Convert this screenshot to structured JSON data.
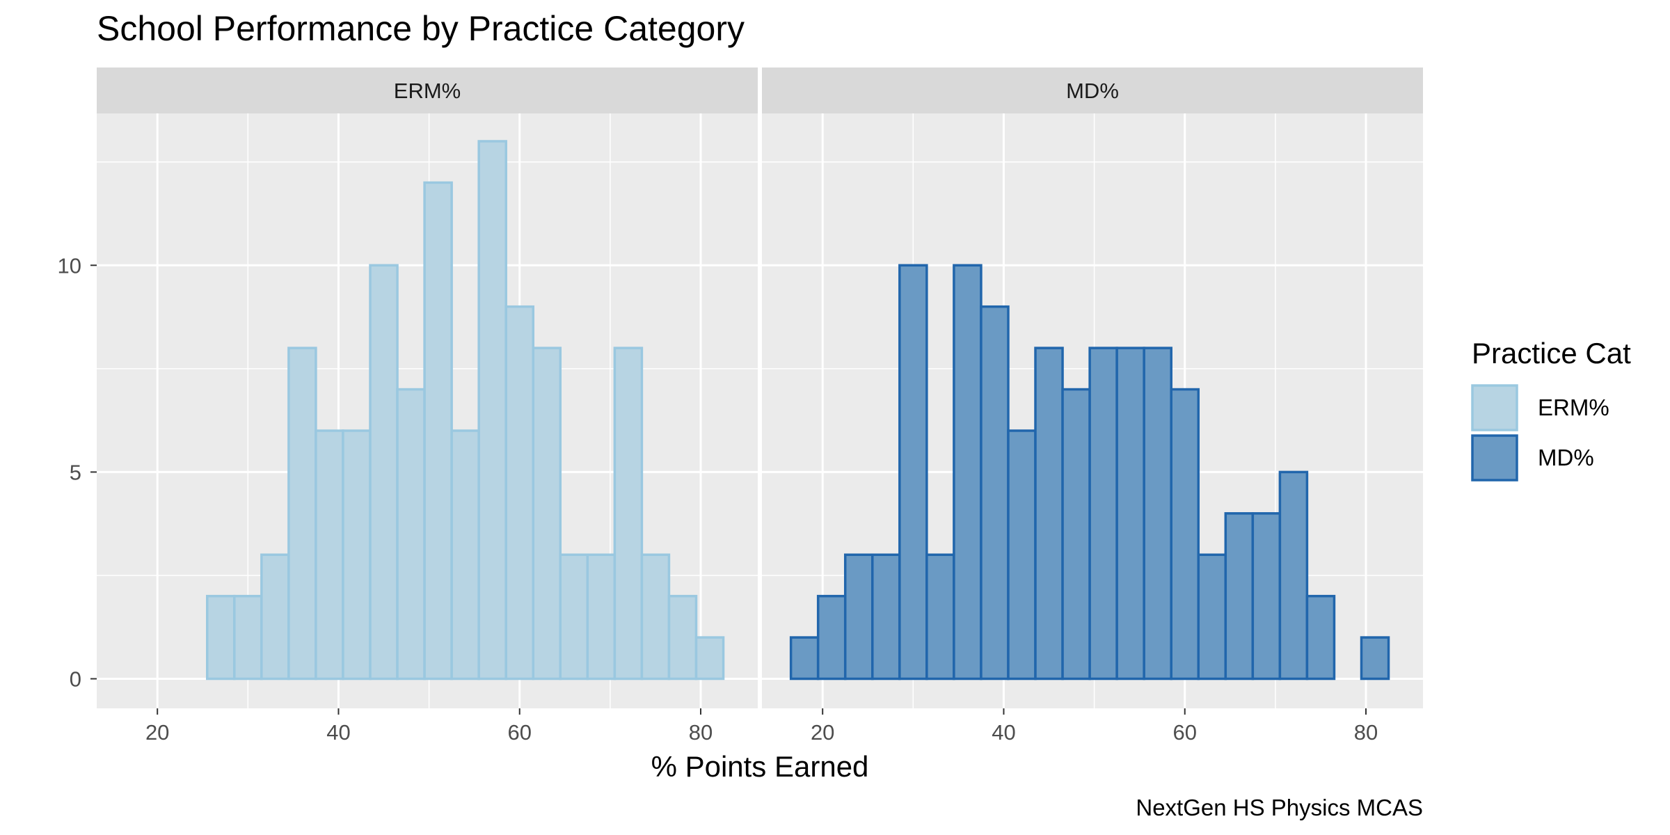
{
  "chart_data": {
    "type": "bar",
    "title": "School Performance by Practice Category",
    "xlabel": "% Points Earned",
    "ylabel": "",
    "caption": "NextGen HS Physics MCAS",
    "xlim": [
      13.3,
      86.3
    ],
    "ylim": [
      0,
      13
    ],
    "x_ticks": [
      20,
      40,
      60,
      80
    ],
    "y_ticks": [
      0,
      5,
      10
    ],
    "bin_width": 3,
    "grid": true,
    "legend_position": "right",
    "legend": {
      "title": "Practice Cat",
      "entries": [
        {
          "label": "ERM%",
          "fill": "#b7d4e3",
          "stroke": "#9ac8e0"
        },
        {
          "label": "MD%",
          "fill": "#6a9ac4",
          "stroke": "#2166ac"
        }
      ]
    },
    "facets": [
      {
        "name": "ERM%",
        "fill": "#b7d4e3",
        "stroke": "#9ac8e0",
        "bin_centers": [
          18,
          21,
          24,
          27,
          30,
          33,
          36,
          39,
          42,
          45,
          48,
          51,
          54,
          57,
          60,
          63,
          66,
          69,
          72,
          75,
          78,
          81
        ],
        "counts": [
          0,
          0,
          0,
          2,
          2,
          3,
          8,
          6,
          6,
          10,
          7,
          12,
          6,
          13,
          9,
          8,
          3,
          3,
          8,
          3,
          2,
          1
        ]
      },
      {
        "name": "MD%",
        "fill": "#6a9ac4",
        "stroke": "#2166ac",
        "bin_centers": [
          18,
          21,
          24,
          27,
          30,
          33,
          36,
          39,
          42,
          45,
          48,
          51,
          54,
          57,
          60,
          63,
          66,
          69,
          72,
          75,
          78,
          81
        ],
        "counts": [
          1,
          2,
          3,
          3,
          10,
          3,
          10,
          9,
          6,
          8,
          7,
          8,
          8,
          8,
          7,
          3,
          4,
          4,
          5,
          2,
          0,
          1
        ]
      }
    ]
  }
}
